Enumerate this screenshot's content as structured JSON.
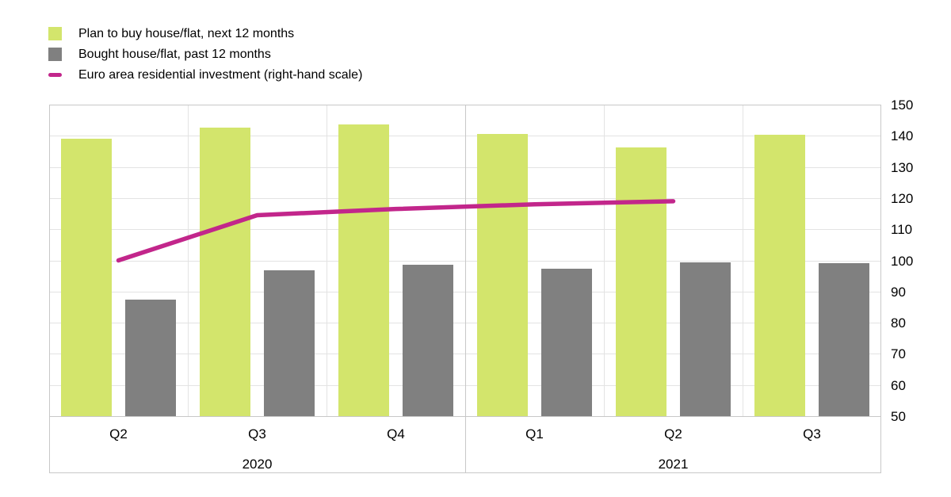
{
  "legend": {
    "items": [
      {
        "label": "Plan to buy house/flat, next 12 months",
        "swatch": "square",
        "color": "#d3e56c"
      },
      {
        "label": "Bought house/flat, past 12 months",
        "swatch": "square",
        "color": "#808080"
      },
      {
        "label": "Euro area residential investment (right-hand scale)",
        "swatch": "line",
        "color": "#c2268b"
      }
    ]
  },
  "chart_data": {
    "type": "bar",
    "subtype": "grouped bars with overlaid line on secondary axis",
    "categories": [
      "Q2",
      "Q3",
      "Q4",
      "Q1",
      "Q2",
      "Q3"
    ],
    "year_groups": [
      {
        "label": "2020",
        "quarters": 3
      },
      {
        "label": "2021",
        "quarters": 3
      }
    ],
    "series": [
      {
        "name": "Plan to buy house/flat, next 12 months",
        "type": "bar",
        "axis": "left",
        "color": "#d3e56c",
        "values": [
          4.45,
          4.63,
          4.68,
          4.53,
          4.31,
          4.52
        ]
      },
      {
        "name": "Bought house/flat, past 12 months",
        "type": "bar",
        "axis": "left",
        "color": "#808080",
        "values": [
          1.87,
          2.34,
          2.43,
          2.37,
          2.47,
          2.46
        ]
      },
      {
        "name": "Euro area residential investment (right-hand scale)",
        "type": "line",
        "axis": "right",
        "color": "#c2268b",
        "values": [
          100,
          114.5,
          116.5,
          118,
          119,
          null
        ]
      }
    ],
    "left_axis": {
      "min": 0,
      "max": 5,
      "step": 0.5,
      "ticks": [
        "5.0",
        "4.5",
        "4.0",
        "3.5",
        "3.0",
        "2.5",
        "2.0",
        "1.5",
        "1.0",
        "0.5",
        "0.0"
      ]
    },
    "right_axis": {
      "min": 50,
      "max": 150,
      "step": 10,
      "ticks": [
        "150",
        "140",
        "130",
        "120",
        "110",
        "100",
        "90",
        "80",
        "70",
        "60",
        "50"
      ]
    },
    "grid": {
      "horizontal": true,
      "vertical_at_group_boundaries": true
    },
    "legend_position": "top-left",
    "title": ""
  },
  "colors": {
    "background": "#ffffff",
    "gridline": "#e3e3e3",
    "axis_border": "#c8c8c8",
    "text": "#000000"
  }
}
